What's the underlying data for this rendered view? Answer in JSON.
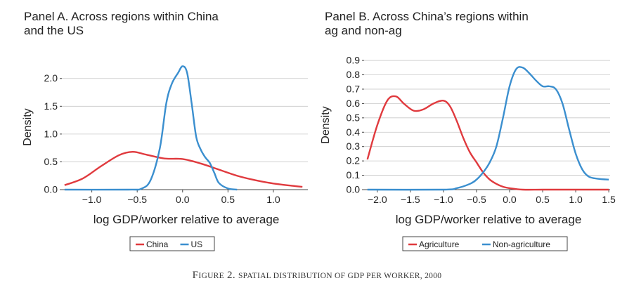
{
  "caption": {
    "prefix": "Figure 2.",
    "text": "Spatial Distribution of GDP per Worker, 2000"
  },
  "colors": {
    "red": "#e03a3e",
    "blue": "#3b8fcf",
    "grid": "#c8c8c8",
    "axis": "#444444"
  },
  "chart_data": [
    {
      "type": "line",
      "title": "Panel A. Across regions within China and the US",
      "title_lines": [
        "Panel A. Across regions within China",
        "and the US"
      ],
      "xlabel": "log GDP/worker relative to average",
      "ylabel": "Density",
      "xlim": [
        -1.33,
        1.38
      ],
      "ylim": [
        0,
        2.3
      ],
      "xticks": [
        -1.0,
        -0.5,
        0.0,
        0.5,
        1.0
      ],
      "xtick_labels": [
        "−1.0",
        "−0.5",
        "0.0",
        "0.5",
        "1.0"
      ],
      "yticks": [
        0.0,
        0.5,
        1.0,
        1.5,
        2.0
      ],
      "ytick_labels": [
        "0.0",
        "0.5",
        "1.0",
        "1.5",
        "2.0"
      ],
      "grid": true,
      "legend": "bottom",
      "series": [
        {
          "name": "China",
          "color": "#e03a3e",
          "x": [
            -1.3,
            -1.1,
            -0.9,
            -0.7,
            -0.55,
            -0.4,
            -0.2,
            0.0,
            0.2,
            0.4,
            0.6,
            0.8,
            1.0,
            1.2,
            1.32
          ],
          "y": [
            0.08,
            0.2,
            0.42,
            0.62,
            0.68,
            0.63,
            0.56,
            0.55,
            0.47,
            0.36,
            0.25,
            0.17,
            0.11,
            0.07,
            0.05
          ]
        },
        {
          "name": "US",
          "color": "#3b8fcf",
          "x": [
            -1.3,
            -0.6,
            -0.45,
            -0.35,
            -0.25,
            -0.18,
            -0.12,
            -0.05,
            0.0,
            0.05,
            0.1,
            0.15,
            0.2,
            0.25,
            0.3,
            0.35,
            0.4,
            0.5,
            0.6
          ],
          "y": [
            0.0,
            0.0,
            0.02,
            0.18,
            0.75,
            1.55,
            1.9,
            2.1,
            2.22,
            2.1,
            1.55,
            0.95,
            0.72,
            0.58,
            0.48,
            0.3,
            0.12,
            0.02,
            0.0
          ]
        }
      ]
    },
    {
      "type": "line",
      "title": "Panel B. Across China’s regions within ag and non-ag",
      "title_lines": [
        "Panel B. Across China’s regions within",
        "ag and non-ag"
      ],
      "xlabel": "log GDP/worker relative to average",
      "ylabel": "Density",
      "xlim": [
        -2.2,
        1.52
      ],
      "ylim": [
        0,
        0.92
      ],
      "xticks": [
        -2.0,
        -1.5,
        -1.0,
        -0.5,
        0.0,
        0.5,
        1.0,
        1.5
      ],
      "xtick_labels": [
        "−2.0",
        "−1.5",
        "−1.0",
        "−0.5",
        "0.0",
        "0.5",
        "1.0",
        "1.5"
      ],
      "yticks": [
        0.0,
        0.1,
        0.2,
        0.3,
        0.4,
        0.5,
        0.6,
        0.7,
        0.8,
        0.9
      ],
      "ytick_labels": [
        "0.0",
        "0.1",
        "0.2",
        "0.3",
        "0.4",
        "0.5",
        "0.6",
        "0.7",
        "0.8",
        "0.9"
      ],
      "grid": true,
      "legend": "bottom",
      "series": [
        {
          "name": "Agriculture",
          "color": "#e03a3e",
          "x": [
            -2.15,
            -2.0,
            -1.85,
            -1.72,
            -1.6,
            -1.45,
            -1.3,
            -1.15,
            -1.0,
            -0.9,
            -0.8,
            -0.7,
            -0.6,
            -0.5,
            -0.4,
            -0.3,
            -0.2,
            -0.1,
            0.0,
            0.2,
            0.5,
            1.0,
            1.5
          ],
          "y": [
            0.21,
            0.45,
            0.62,
            0.65,
            0.6,
            0.55,
            0.56,
            0.6,
            0.62,
            0.58,
            0.48,
            0.36,
            0.26,
            0.19,
            0.12,
            0.07,
            0.04,
            0.02,
            0.01,
            0.0,
            0.0,
            0.0,
            0.0
          ]
        },
        {
          "name": "Non-agriculture",
          "color": "#3b8fcf",
          "x": [
            -2.15,
            -1.0,
            -0.8,
            -0.6,
            -0.5,
            -0.4,
            -0.3,
            -0.2,
            -0.1,
            0.0,
            0.1,
            0.2,
            0.3,
            0.4,
            0.5,
            0.6,
            0.7,
            0.8,
            0.9,
            1.0,
            1.1,
            1.2,
            1.35,
            1.5
          ],
          "y": [
            0.0,
            0.0,
            0.01,
            0.04,
            0.07,
            0.12,
            0.19,
            0.3,
            0.5,
            0.72,
            0.84,
            0.85,
            0.81,
            0.76,
            0.72,
            0.72,
            0.7,
            0.6,
            0.42,
            0.25,
            0.14,
            0.09,
            0.075,
            0.07
          ]
        }
      ]
    }
  ]
}
